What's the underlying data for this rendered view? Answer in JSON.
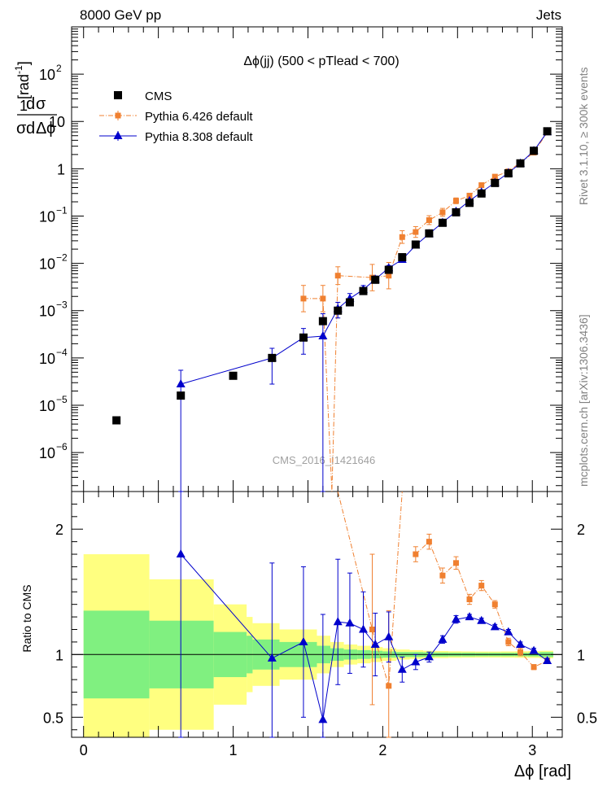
{
  "header": {
    "energy": "8000 GeV pp",
    "process": "Jets",
    "title": "Δϕ(jj) (500 < pTlead <  700)",
    "side_rivet": "Rivet 3.1.10, ≥ 300k events",
    "side_mcplots": "mcplots.cern.ch [arXiv:1306.3436]",
    "watermark": "CMS_2016_I1421646"
  },
  "colors": {
    "cms": "#000000",
    "pythia6": "#f08030",
    "pythia8": "#0000cc",
    "band_inner": "#80f080",
    "band_outer": "#ffff80"
  },
  "chart_data": [
    {
      "type": "scatter",
      "panel": "main",
      "ylabel": "1/σ dσ/dΔϕ [rad⁻¹]",
      "yscale": "log",
      "xlim": [
        -0.08,
        3.2
      ],
      "ylim": [
        1.5e-07,
        1000
      ],
      "y_ticks": [
        {
          "v": 1e-06,
          "label": "10",
          "exp": "−6"
        },
        {
          "v": 1e-05,
          "label": "10",
          "exp": "−5"
        },
        {
          "v": 0.0001,
          "label": "10",
          "exp": "−4"
        },
        {
          "v": 0.001,
          "label": "10",
          "exp": "−3"
        },
        {
          "v": 0.01,
          "label": "10",
          "exp": "−2"
        },
        {
          "v": 0.1,
          "label": "10",
          "exp": "−1"
        },
        {
          "v": 1,
          "label": "1",
          "exp": ""
        },
        {
          "v": 10,
          "label": "10",
          "exp": ""
        },
        {
          "v": 100,
          "label": "10",
          "exp": "2"
        }
      ],
      "legend": [
        "CMS",
        "Pythia 6.426 default",
        "Pythia 8.308 default"
      ],
      "series": [
        {
          "name": "CMS",
          "x": [
            0.22,
            0.65,
            1.0,
            1.26,
            1.47,
            1.6,
            1.7,
            1.78,
            1.87,
            1.95,
            2.04,
            2.13,
            2.22,
            2.31,
            2.4,
            2.49,
            2.58,
            2.66,
            2.75,
            2.84,
            2.92,
            3.01,
            3.1
          ],
          "y": [
            4.8e-06,
            1.6e-05,
            4.2e-05,
            0.0001,
            0.00027,
            0.0006,
            0.001,
            0.0015,
            0.0026,
            0.0045,
            0.0073,
            0.0135,
            0.025,
            0.043,
            0.072,
            0.12,
            0.19,
            0.3,
            0.5,
            0.8,
            1.3,
            2.4,
            6.2
          ]
        },
        {
          "name": "Pythia 6.426 default",
          "x": [
            1.47,
            1.6,
            1.66,
            1.7,
            1.93,
            2.04,
            2.13,
            2.22,
            2.31,
            2.4,
            2.49,
            2.58,
            2.66,
            2.75,
            2.84,
            2.92,
            3.01,
            3.1
          ],
          "y": [
            0.0018,
            0.0018,
            1e-07,
            0.0055,
            0.005,
            0.0055,
            0.036,
            0.046,
            0.082,
            0.12,
            0.21,
            0.27,
            0.45,
            0.68,
            0.88,
            1.35,
            2.2,
            5.9
          ],
          "err": [
            0.3,
            0.3,
            0,
            0.18,
            0.3,
            0.3,
            0.12,
            0.1,
            0.08,
            0.07,
            0.05,
            0.04,
            0.04,
            0.03,
            0.03,
            0.03,
            0.02,
            0.02
          ]
        },
        {
          "name": "Pythia 8.308 default",
          "x": [
            0.65,
            1.26,
            1.47,
            1.6,
            1.7,
            1.78,
            1.87,
            1.95,
            2.04,
            2.13,
            2.22,
            2.31,
            2.4,
            2.49,
            2.58,
            2.66,
            2.75,
            2.84,
            2.92,
            3.01,
            3.1
          ],
          "y": [
            2.8e-05,
            0.0001,
            0.00027,
            0.00029,
            0.0011,
            0.0018,
            0.0028,
            0.0046,
            0.008,
            0.012,
            0.024,
            0.042,
            0.073,
            0.125,
            0.21,
            0.32,
            0.51,
            0.82,
            1.3,
            2.4,
            6.0
          ],
          "err_lo": [
            1e-07,
            2.8e-05,
            0.00012,
            1e-07,
            0.0007,
            0.0013,
            0.0022,
            0.0038,
            0.007,
            0.011,
            0.022,
            0.04,
            0.07,
            0.12,
            0.2,
            0.31,
            0.5,
            0.8,
            1.27,
            2.35,
            5.9
          ],
          "err_hi": [
            5.5e-05,
            0.00016,
            0.00042,
            0.00086,
            0.0015,
            0.0023,
            0.0034,
            0.0054,
            0.009,
            0.013,
            0.026,
            0.044,
            0.076,
            0.13,
            0.22,
            0.33,
            0.52,
            0.84,
            1.33,
            2.45,
            6.1
          ]
        }
      ]
    },
    {
      "type": "line",
      "panel": "ratio",
      "xlabel": "Δϕ [rad]",
      "ylabel": "Ratio to CMS",
      "xlim": [
        -0.08,
        3.2
      ],
      "ylim": [
        0.34,
        2.3
      ],
      "x_ticks": [
        0,
        0.5,
        1,
        1.5,
        2,
        2.5,
        3
      ],
      "x_tick_labels": [
        "0",
        "1",
        "2",
        "3"
      ],
      "y_tick_labels": [
        "0.5",
        "1",
        "2"
      ],
      "bands": {
        "edges": [
          0.0,
          0.44,
          0.87,
          1.09,
          1.13,
          1.31,
          1.56,
          1.65,
          1.74,
          1.83,
          1.92,
          2.0,
          2.09,
          2.18,
          2.27,
          2.35,
          2.44,
          2.53,
          2.62,
          2.71,
          2.79,
          2.88,
          2.97,
          3.05,
          3.14
        ],
        "inner": [
          0.35,
          0.27,
          0.18,
          0.15,
          0.12,
          0.1,
          0.07,
          0.05,
          0.04,
          0.035,
          0.03,
          0.025,
          0.02,
          0.02,
          0.018,
          0.016,
          0.015,
          0.015,
          0.014,
          0.014,
          0.014,
          0.014,
          0.015,
          0.02
        ],
        "outer": [
          0.8,
          0.6,
          0.4,
          0.3,
          0.25,
          0.2,
          0.15,
          0.1,
          0.08,
          0.07,
          0.06,
          0.05,
          0.04,
          0.035,
          0.03,
          0.028,
          0.026,
          0.025,
          0.024,
          0.024,
          0.025,
          0.026,
          0.027,
          0.03
        ]
      },
      "series": [
        {
          "name": "Pythia 6.426 default",
          "x": [
            1.93,
            2.04,
            2.22,
            2.31,
            2.4,
            2.49,
            2.58,
            2.66,
            2.75,
            2.84,
            2.92,
            3.01,
            3.1
          ],
          "y": [
            1.2,
            0.75,
            1.8,
            1.9,
            1.63,
            1.73,
            1.44,
            1.55,
            1.4,
            1.1,
            1.02,
            0.9,
            0.95
          ],
          "err": [
            0.6,
            0.6,
            0.06,
            0.06,
            0.06,
            0.05,
            0.04,
            0.04,
            0.03,
            0.03,
            0.03,
            0.02,
            0.02
          ],
          "extra_line": [
            [
              1.7,
              2.6
            ],
            [
              1.93,
              1.2
            ],
            [
              2.04,
              0.75
            ],
            [
              2.13,
              2.6
            ]
          ]
        },
        {
          "name": "Pythia 8.308 default",
          "x": [
            0.65,
            1.26,
            1.47,
            1.6,
            1.7,
            1.78,
            1.87,
            1.95,
            2.04,
            2.13,
            2.22,
            2.31,
            2.4,
            2.49,
            2.58,
            2.66,
            2.75,
            2.84,
            2.92,
            3.01,
            3.1
          ],
          "y": [
            1.8,
            0.97,
            1.1,
            0.48,
            1.26,
            1.25,
            1.2,
            1.08,
            1.14,
            0.88,
            0.94,
            0.98,
            1.12,
            1.28,
            1.3,
            1.27,
            1.22,
            1.18,
            1.08,
            1.03,
            0.95
          ],
          "err": [
            1.8,
            0.76,
            0.6,
            0.84,
            0.5,
            0.4,
            0.3,
            0.25,
            0.2,
            0.1,
            0.06,
            0.04,
            0.03,
            0.03,
            0.02,
            0.02,
            0.02,
            0.02,
            0.02,
            0.02,
            0.02
          ]
        }
      ]
    }
  ]
}
